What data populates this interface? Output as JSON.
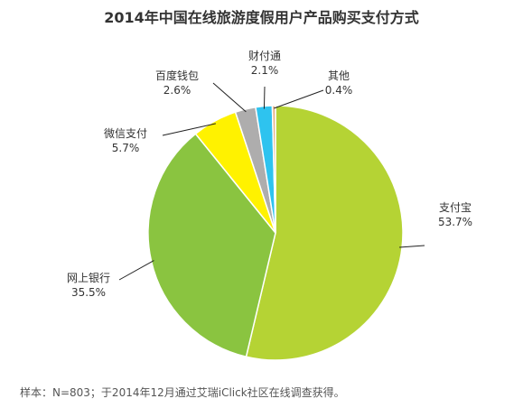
{
  "chart_data": {
    "type": "pie",
    "title": "2014年中国在线旅游度假用户产品购买支付方式",
    "slices": [
      {
        "label": "支付宝",
        "value": 53.7,
        "value_label": "53.7%",
        "color": "#b5d334"
      },
      {
        "label": "网上银行",
        "value": 35.5,
        "value_label": "35.5%",
        "color": "#8ac440"
      },
      {
        "label": "微信支付",
        "value": 5.7,
        "value_label": "5.7%",
        "color": "#fff200"
      },
      {
        "label": "百度钱包",
        "value": 2.6,
        "value_label": "2.6%",
        "color": "#aeadad"
      },
      {
        "label": "财付通",
        "value": 2.1,
        "value_label": "2.1%",
        "color": "#2ec3ef"
      },
      {
        "label": "其他",
        "value": 0.4,
        "value_label": "0.4%",
        "color": "#e7b185"
      }
    ],
    "start_angle_deg": 0,
    "direction": "clockwise",
    "footnote": "样本：N=803；于2014年12月通过艾瑞iClick社区在线调查获得。"
  }
}
